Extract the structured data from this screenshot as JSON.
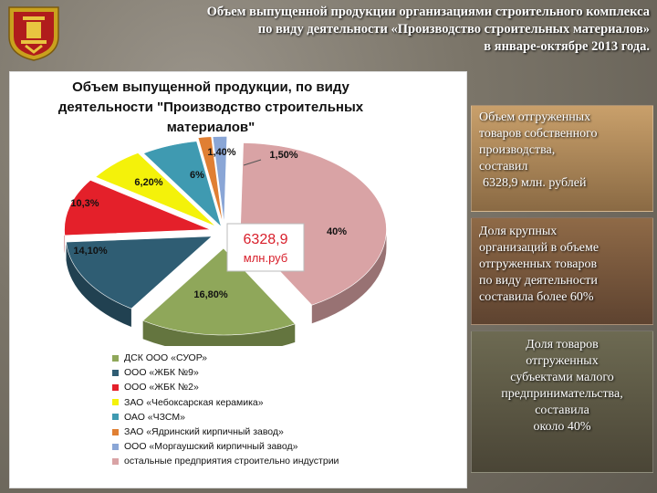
{
  "header": {
    "title_lines": [
      "Объем выпущенной продукции организациями строительного комплекса",
      "по виду деятельности «Производство строительных материалов»",
      "в январе-октябре 2013 года."
    ]
  },
  "chart_data": {
    "type": "pie",
    "title_lines": [
      "Объем выпущенной продукции, по виду",
      "деятельности \"Производство строительных",
      "материалов\""
    ],
    "center_label_lines": [
      "6328,9",
      "млн.руб"
    ],
    "slices": [
      {
        "name": "ДСК ООО «СУОР»",
        "value": 16.8,
        "label": "16,80%",
        "color": "#8fa75a"
      },
      {
        "name": "ООО «ЖБК №9»",
        "value": 14.1,
        "label": "14,10%",
        "color": "#2f5d73"
      },
      {
        "name": "ООО «ЖБК №2»",
        "value": 10.3,
        "label": "10,3%",
        "color": "#e4202a"
      },
      {
        "name": "ЗАО «Чебоксарская керамика»",
        "value": 6.2,
        "label": "6,20%",
        "color": "#f4f20a"
      },
      {
        "name": "ОАО «ЧЗСМ»",
        "value": 6.0,
        "label": "6%",
        "color": "#3f9ab1"
      },
      {
        "name": "ЗАО «Ядринский кирпичный завод»",
        "value": 1.4,
        "label": "1,40%",
        "color": "#e07f33"
      },
      {
        "name": "ООО «Моргаушский кирпичный завод»",
        "value": 1.5,
        "label": "1,50%",
        "color": "#8aa6d6"
      },
      {
        "name": "остальные предприятия строительно индустрии",
        "value": 40,
        "label": "40%",
        "color": "#d9a3a5"
      }
    ],
    "legend": [
      {
        "label": "ДСК ООО «СУОР»",
        "color": "#8fa75a"
      },
      {
        "label": "ООО «ЖБК №9»",
        "color": "#2f5d73"
      },
      {
        "label": "ООО «ЖБК №2»",
        "color": "#e4202a"
      },
      {
        "label": "ЗАО «Чебоксарская керамика»",
        "color": "#f4f20a"
      },
      {
        "label": "ОАО «ЧЗСМ»",
        "color": "#3f9ab1"
      },
      {
        "label": "ЗАО «Ядринский кирпичный завод»",
        "color": "#e07f33"
      },
      {
        "label": "ООО «Моргаушский кирпичный завод»",
        "color": "#8aa6d6"
      },
      {
        "label": "остальные предприятия строительно индустрии",
        "color": "#d9a3a5"
      }
    ],
    "legend_placement": "bottom"
  },
  "info_boxes": [
    {
      "lines": [
        "Объем отгруженных",
        "товаров собственного",
        "производства,",
        "составил",
        "6328,9  млн. рублей"
      ]
    },
    {
      "lines": [
        "Доля крупных",
        "организаций в объеме",
        "отгруженных товаров",
        "по виду  деятельности",
        "составила более 60%"
      ]
    },
    {
      "lines": [
        "Доля товаров",
        "отгруженных",
        "субъектами малого",
        "предпринимательства,",
        "составила",
        "около 40%"
      ]
    }
  ]
}
